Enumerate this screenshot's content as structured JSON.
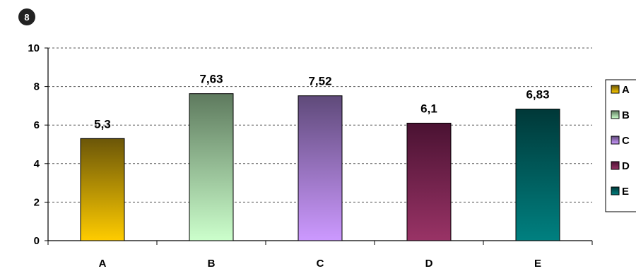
{
  "badge": "8",
  "chart_data": {
    "type": "bar",
    "categories": [
      "A",
      "B",
      "C",
      "D",
      "E"
    ],
    "values": [
      5.3,
      7.63,
      7.52,
      6.1,
      6.83
    ],
    "value_labels": [
      "5,3",
      "7,63",
      "7,52",
      "6,1",
      "6,83"
    ],
    "title": "",
    "xlabel": "",
    "ylabel": "",
    "ylim": [
      0,
      10
    ],
    "yticks": [
      0,
      2,
      4,
      6,
      8,
      10
    ],
    "ytick_labels": [
      "0",
      "2",
      "4",
      "6",
      "8",
      "10"
    ],
    "grid": true,
    "legend": {
      "placement": "right",
      "entries": [
        "A",
        "B",
        "C",
        "D",
        "E"
      ]
    },
    "colors": [
      {
        "top": "#6b5608",
        "bottom": "#ffcc00"
      },
      {
        "top": "#5e7a5e",
        "bottom": "#ccffcc"
      },
      {
        "top": "#5f4a7a",
        "bottom": "#cc99ff"
      },
      {
        "top": "#4a1232",
        "bottom": "#993366"
      },
      {
        "top": "#003838",
        "bottom": "#008080"
      }
    ]
  }
}
